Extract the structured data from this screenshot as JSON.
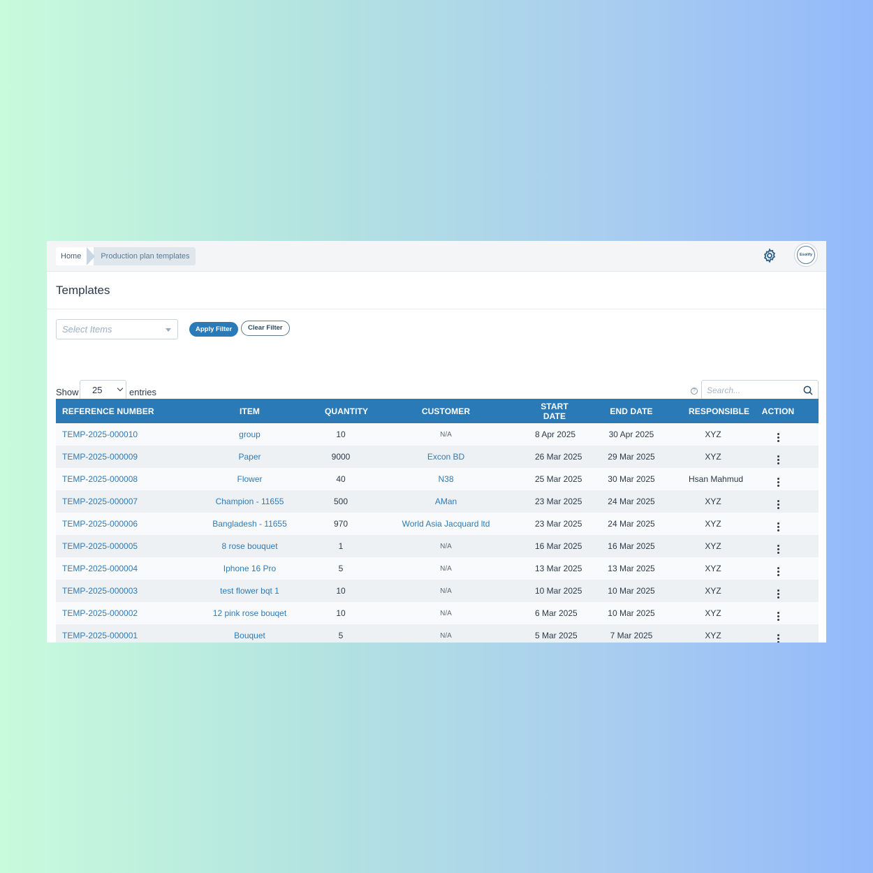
{
  "breadcrumb": {
    "home": "Home",
    "current": "Production plan templates"
  },
  "header": {
    "avatar_text": "Esolify",
    "settings_icon": "gear-icon"
  },
  "page": {
    "title": "Templates"
  },
  "filters": {
    "select_placeholder": "Select Items",
    "apply_label": "Apply Filter",
    "clear_label": "Clear Filter"
  },
  "controls": {
    "show_label": "Show",
    "entries_value": "25",
    "entries_label": "entries",
    "search_placeholder": "Search..."
  },
  "colors": {
    "accent": "#2b7ab8",
    "link": "#2f7ab5"
  },
  "table": {
    "columns": [
      "REFERENCE NUMBER",
      "ITEM",
      "QUANTITY",
      "CUSTOMER",
      "START DATE",
      "END DATE",
      "RESPONSIBLE",
      "ACTION"
    ],
    "rows": [
      {
        "ref": "TEMP-2025-000010",
        "item": "group",
        "qty": "10",
        "customer": "N/A",
        "start": "8 Apr 2025",
        "end": "30 Apr 2025",
        "responsible": "XYZ"
      },
      {
        "ref": "TEMP-2025-000009",
        "item": "Paper",
        "qty": "9000",
        "customer": "Excon BD",
        "start": "26 Mar 2025",
        "end": "29 Mar 2025",
        "responsible": "XYZ"
      },
      {
        "ref": "TEMP-2025-000008",
        "item": "Flower",
        "qty": "40",
        "customer": "N38",
        "start": "25 Mar 2025",
        "end": "30 Mar 2025",
        "responsible": "Hsan Mahmud"
      },
      {
        "ref": "TEMP-2025-000007",
        "item": "Champion - 11655",
        "qty": "500",
        "customer": "AMan",
        "start": "23 Mar 2025",
        "end": "24 Mar 2025",
        "responsible": "XYZ"
      },
      {
        "ref": "TEMP-2025-000006",
        "item": "Bangladesh - 11655",
        "qty": "970",
        "customer": "World Asia Jacquard ltd",
        "start": "23 Mar 2025",
        "end": "24 Mar 2025",
        "responsible": "XYZ"
      },
      {
        "ref": "TEMP-2025-000005",
        "item": "8 rose bouquet",
        "qty": "1",
        "customer": "N/A",
        "start": "16 Mar 2025",
        "end": "16 Mar 2025",
        "responsible": "XYZ"
      },
      {
        "ref": "TEMP-2025-000004",
        "item": "Iphone 16 Pro",
        "qty": "5",
        "customer": "N/A",
        "start": "13 Mar 2025",
        "end": "13 Mar 2025",
        "responsible": "XYZ"
      },
      {
        "ref": "TEMP-2025-000003",
        "item": "test flower bqt 1",
        "qty": "10",
        "customer": "N/A",
        "start": "10 Mar 2025",
        "end": "10 Mar 2025",
        "responsible": "XYZ"
      },
      {
        "ref": "TEMP-2025-000002",
        "item": "12 pink rose bouqet",
        "qty": "10",
        "customer": "N/A",
        "start": "6 Mar 2025",
        "end": "10 Mar 2025",
        "responsible": "XYZ"
      },
      {
        "ref": "TEMP-2025-000001",
        "item": "Bouquet",
        "qty": "5",
        "customer": "N/A",
        "start": "5 Mar 2025",
        "end": "7 Mar 2025",
        "responsible": "XYZ"
      }
    ]
  }
}
